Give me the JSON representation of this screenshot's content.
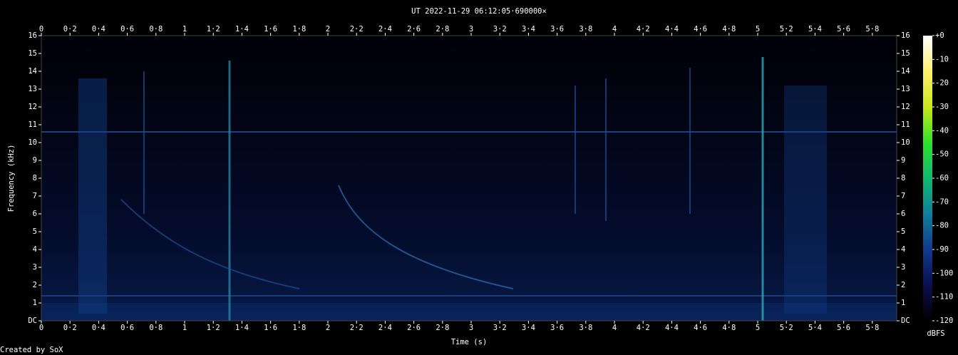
{
  "chart_data": {
    "type": "spectrogram",
    "title": "UT 2022-11-29 06:12:05·690000×",
    "x_label": "Time (s)",
    "y_label": "Frequency (kHz)",
    "footer": "Created by SoX",
    "colorbar_label": "dBFS",
    "xlim": [
      0,
      5.97
    ],
    "ylim": [
      0,
      16
    ],
    "clim": [
      -120,
      0
    ],
    "xticks": [
      0,
      {
        "value": 0.2,
        "label": "0·2"
      },
      {
        "value": 0.4,
        "label": "0·4"
      },
      {
        "value": 0.6,
        "label": "0·6"
      },
      {
        "value": 0.8,
        "label": "0·8"
      },
      1,
      {
        "value": 1.2,
        "label": "1·2"
      },
      {
        "value": 1.4,
        "label": "1·4"
      },
      {
        "value": 1.6,
        "label": "1·6"
      },
      {
        "value": 1.8,
        "label": "1·8"
      },
      2,
      {
        "value": 2.2,
        "label": "2·2"
      },
      {
        "value": 2.4,
        "label": "2·4"
      },
      {
        "value": 2.6,
        "label": "2·6"
      },
      {
        "value": 2.8,
        "label": "2·8"
      },
      3,
      {
        "value": 3.2,
        "label": "3·2"
      },
      {
        "value": 3.4,
        "label": "3·4"
      },
      {
        "value": 3.6,
        "label": "3·6"
      },
      {
        "value": 3.8,
        "label": "3·8"
      },
      4,
      {
        "value": 4.2,
        "label": "4·2"
      },
      {
        "value": 4.4,
        "label": "4·4"
      },
      {
        "value": 4.6,
        "label": "4·6"
      },
      {
        "value": 4.8,
        "label": "4·8"
      },
      5,
      {
        "value": 5.2,
        "label": "5·2"
      },
      {
        "value": 5.4,
        "label": "5·4"
      },
      {
        "value": 5.6,
        "label": "5·6"
      },
      {
        "value": 5.8,
        "label": "5·8"
      }
    ],
    "yticks": [
      {
        "value": 0,
        "label": "DC"
      },
      1,
      2,
      3,
      4,
      5,
      6,
      7,
      8,
      9,
      10,
      11,
      12,
      13,
      14,
      15,
      16
    ],
    "cticks": [
      {
        "value": 0,
        "label": "+0"
      },
      -10,
      -20,
      -30,
      -40,
      -50,
      -60,
      -70,
      -80,
      -90,
      -100,
      -110,
      -120
    ],
    "colormap": [
      "#000000",
      "#0a0f50",
      "#103a8c",
      "#0f7f9a",
      "#12b870",
      "#2fe02a",
      "#c8e81a",
      "#fff070",
      "#ffffff"
    ]
  }
}
